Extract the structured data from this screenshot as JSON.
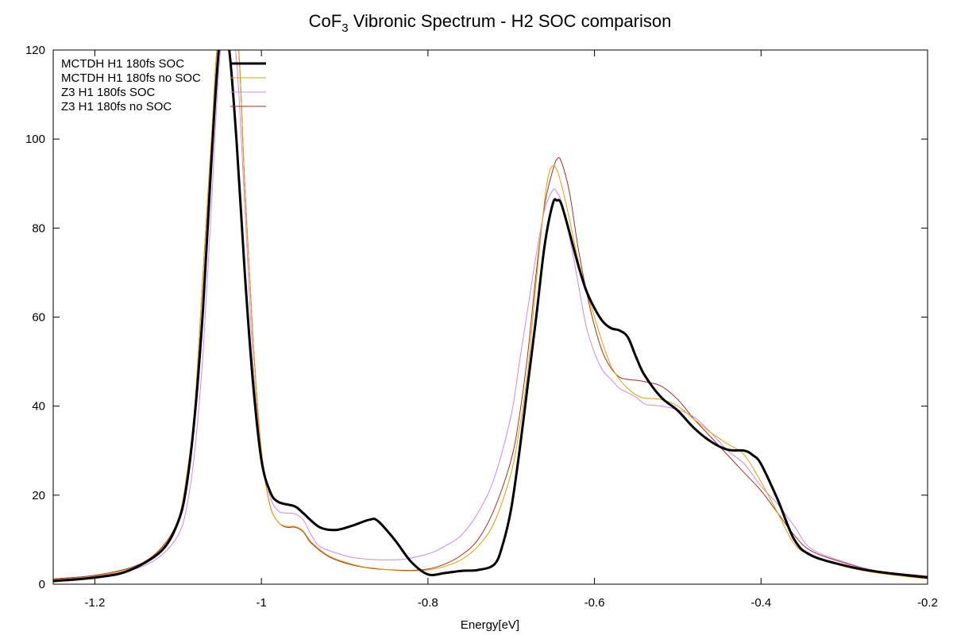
{
  "chart_data": {
    "type": "line",
    "title_main": "CoF",
    "title_sub": "3",
    "title_rest": " Vibronic Spectrum - H2 SOC comparison",
    "xlabel": "Energy[eV]",
    "ylabel": "",
    "xlim": [
      -1.25,
      -0.2
    ],
    "ylim": [
      0,
      120
    ],
    "xticks": [
      -1.2,
      -1,
      -0.8,
      -0.6,
      -0.4,
      -0.2
    ],
    "xtick_labels": [
      "-1.2",
      "-1",
      "-0.8",
      "-0.6",
      "-0.4",
      "-0.2"
    ],
    "yticks": [
      0,
      20,
      40,
      60,
      80,
      100,
      120
    ],
    "ytick_labels": [
      "0",
      "20",
      "40",
      "60",
      "80",
      "100",
      "120"
    ],
    "grid": false,
    "zero_line": true,
    "legend_position": "top-left",
    "series": [
      {
        "name": "MCTDH H1 180fs SOC",
        "color": "#000000",
        "width": 3,
        "points": [
          [
            -1.25,
            0.7
          ],
          [
            -1.2,
            1.5
          ],
          [
            -1.16,
            3.0
          ],
          [
            -1.12,
            7.5
          ],
          [
            -1.1,
            14
          ],
          [
            -1.09,
            22
          ],
          [
            -1.08,
            38
          ],
          [
            -1.07,
            62
          ],
          [
            -1.06,
            95
          ],
          [
            -1.05,
            122
          ],
          [
            -1.04,
            122
          ],
          [
            -1.03,
            100
          ],
          [
            -1.02,
            70
          ],
          [
            -1.01,
            45
          ],
          [
            -1.0,
            28
          ],
          [
            -0.99,
            21
          ],
          [
            -0.98,
            18.5
          ],
          [
            -0.96,
            17.5
          ],
          [
            -0.95,
            16.0
          ],
          [
            -0.93,
            12.8
          ],
          [
            -0.91,
            12.2
          ],
          [
            -0.89,
            13.2
          ],
          [
            -0.87,
            14.5
          ],
          [
            -0.86,
            14.2
          ],
          [
            -0.84,
            10
          ],
          [
            -0.82,
            5
          ],
          [
            -0.8,
            2.2
          ],
          [
            -0.78,
            2.5
          ],
          [
            -0.76,
            3.0
          ],
          [
            -0.74,
            3.2
          ],
          [
            -0.72,
            4.5
          ],
          [
            -0.71,
            9
          ],
          [
            -0.7,
            17
          ],
          [
            -0.69,
            30
          ],
          [
            -0.68,
            45
          ],
          [
            -0.67,
            60
          ],
          [
            -0.66,
            76
          ],
          [
            -0.65,
            85.5
          ],
          [
            -0.645,
            86.2
          ],
          [
            -0.64,
            85.5
          ],
          [
            -0.63,
            79
          ],
          [
            -0.62,
            72
          ],
          [
            -0.61,
            66
          ],
          [
            -0.6,
            62
          ],
          [
            -0.59,
            59
          ],
          [
            -0.58,
            57.5
          ],
          [
            -0.57,
            57
          ],
          [
            -0.56,
            55.5
          ],
          [
            -0.55,
            51
          ],
          [
            -0.54,
            47
          ],
          [
            -0.52,
            42
          ],
          [
            -0.5,
            39
          ],
          [
            -0.48,
            35
          ],
          [
            -0.46,
            32
          ],
          [
            -0.44,
            30.2
          ],
          [
            -0.42,
            30
          ],
          [
            -0.41,
            29
          ],
          [
            -0.4,
            27
          ],
          [
            -0.38,
            19
          ],
          [
            -0.36,
            10
          ],
          [
            -0.34,
            6.5
          ],
          [
            -0.3,
            4.2
          ],
          [
            -0.26,
            2.8
          ],
          [
            -0.2,
            1.5
          ]
        ]
      },
      {
        "name": "MCTDH H1 180fs no SOC",
        "color": "#e69f00",
        "width": 1,
        "points": [
          [
            -1.25,
            1.0
          ],
          [
            -1.2,
            1.8
          ],
          [
            -1.15,
            4.0
          ],
          [
            -1.12,
            8.0
          ],
          [
            -1.1,
            14
          ],
          [
            -1.09,
            24
          ],
          [
            -1.08,
            40
          ],
          [
            -1.07,
            70
          ],
          [
            -1.06,
            100
          ],
          [
            -1.05,
            125
          ],
          [
            -1.03,
            125
          ],
          [
            -1.02,
            90
          ],
          [
            -1.01,
            55
          ],
          [
            -1.0,
            30
          ],
          [
            -0.99,
            18
          ],
          [
            -0.98,
            14
          ],
          [
            -0.97,
            13
          ],
          [
            -0.96,
            13
          ],
          [
            -0.95,
            12
          ],
          [
            -0.94,
            9.5
          ],
          [
            -0.92,
            6.5
          ],
          [
            -0.9,
            5.0
          ],
          [
            -0.88,
            4.0
          ],
          [
            -0.86,
            3.5
          ],
          [
            -0.84,
            3.1
          ],
          [
            -0.82,
            3.0
          ],
          [
            -0.8,
            3.2
          ],
          [
            -0.78,
            4.0
          ],
          [
            -0.76,
            5.5
          ],
          [
            -0.74,
            8.5
          ],
          [
            -0.72,
            14
          ],
          [
            -0.7,
            25
          ],
          [
            -0.69,
            35
          ],
          [
            -0.68,
            48
          ],
          [
            -0.67,
            68
          ],
          [
            -0.66,
            86
          ],
          [
            -0.655,
            92
          ],
          [
            -0.65,
            94
          ],
          [
            -0.645,
            93
          ],
          [
            -0.64,
            90
          ],
          [
            -0.63,
            82
          ],
          [
            -0.62,
            73
          ],
          [
            -0.61,
            66
          ],
          [
            -0.6,
            60
          ],
          [
            -0.59,
            54
          ],
          [
            -0.58,
            49
          ],
          [
            -0.57,
            46
          ],
          [
            -0.56,
            44
          ],
          [
            -0.55,
            42.5
          ],
          [
            -0.54,
            41.8
          ],
          [
            -0.52,
            41.5
          ],
          [
            -0.5,
            40
          ],
          [
            -0.48,
            37
          ],
          [
            -0.46,
            34
          ],
          [
            -0.44,
            31.5
          ],
          [
            -0.42,
            29
          ],
          [
            -0.4,
            23
          ],
          [
            -0.38,
            16
          ],
          [
            -0.36,
            9
          ],
          [
            -0.34,
            6.5
          ],
          [
            -0.3,
            4.0
          ],
          [
            -0.26,
            2.5
          ],
          [
            -0.2,
            1.2
          ]
        ]
      },
      {
        "name": "Z3 H1 180fs SOC",
        "color": "#cc88ee",
        "width": 1,
        "points": [
          [
            -1.25,
            1.0
          ],
          [
            -1.2,
            1.8
          ],
          [
            -1.15,
            3.5
          ],
          [
            -1.12,
            6.5
          ],
          [
            -1.1,
            11
          ],
          [
            -1.09,
            17
          ],
          [
            -1.08,
            30
          ],
          [
            -1.07,
            52
          ],
          [
            -1.06,
            85
          ],
          [
            -1.05,
            118
          ],
          [
            -1.04,
            125
          ],
          [
            -1.03,
            118
          ],
          [
            -1.02,
            85
          ],
          [
            -1.01,
            50
          ],
          [
            -1.0,
            30
          ],
          [
            -0.99,
            20
          ],
          [
            -0.98,
            16.5
          ],
          [
            -0.97,
            16
          ],
          [
            -0.96,
            15.8
          ],
          [
            -0.95,
            14.5
          ],
          [
            -0.94,
            11
          ],
          [
            -0.93,
            8.5
          ],
          [
            -0.91,
            7.0
          ],
          [
            -0.89,
            6.0
          ],
          [
            -0.86,
            5.5
          ],
          [
            -0.83,
            5.6
          ],
          [
            -0.8,
            6.8
          ],
          [
            -0.78,
            8.5
          ],
          [
            -0.76,
            11
          ],
          [
            -0.74,
            16
          ],
          [
            -0.72,
            24
          ],
          [
            -0.7,
            38
          ],
          [
            -0.69,
            50
          ],
          [
            -0.68,
            62
          ],
          [
            -0.67,
            74
          ],
          [
            -0.66,
            84
          ],
          [
            -0.65,
            88.5
          ],
          [
            -0.645,
            88
          ],
          [
            -0.64,
            86
          ],
          [
            -0.63,
            78
          ],
          [
            -0.62,
            68
          ],
          [
            -0.61,
            58
          ],
          [
            -0.6,
            52
          ],
          [
            -0.59,
            48
          ],
          [
            -0.58,
            46
          ],
          [
            -0.57,
            44
          ],
          [
            -0.56,
            43
          ],
          [
            -0.55,
            42
          ],
          [
            -0.54,
            40.5
          ],
          [
            -0.53,
            40.2
          ],
          [
            -0.52,
            40
          ],
          [
            -0.5,
            39.2
          ],
          [
            -0.48,
            37.5
          ],
          [
            -0.46,
            34
          ],
          [
            -0.44,
            30
          ],
          [
            -0.42,
            27
          ],
          [
            -0.4,
            22
          ],
          [
            -0.38,
            18
          ],
          [
            -0.36,
            13
          ],
          [
            -0.34,
            8
          ],
          [
            -0.3,
            5.0
          ],
          [
            -0.26,
            3.0
          ],
          [
            -0.2,
            1.5
          ]
        ]
      },
      {
        "name": "Z3 H1 180fs no SOC",
        "color": "#a0302a",
        "width": 1,
        "points": [
          [
            -1.25,
            1.2
          ],
          [
            -1.2,
            2.0
          ],
          [
            -1.15,
            4.2
          ],
          [
            -1.12,
            8.2
          ],
          [
            -1.1,
            14.5
          ],
          [
            -1.09,
            24
          ],
          [
            -1.08,
            40
          ],
          [
            -1.07,
            70
          ],
          [
            -1.06,
            100
          ],
          [
            -1.05,
            125
          ],
          [
            -1.03,
            125
          ],
          [
            -1.02,
            90
          ],
          [
            -1.01,
            55
          ],
          [
            -1.0,
            30
          ],
          [
            -0.99,
            18
          ],
          [
            -0.98,
            14
          ],
          [
            -0.97,
            12.8
          ],
          [
            -0.96,
            12.8
          ],
          [
            -0.95,
            11.8
          ],
          [
            -0.94,
            9.2
          ],
          [
            -0.92,
            6.3
          ],
          [
            -0.9,
            4.8
          ],
          [
            -0.88,
            3.9
          ],
          [
            -0.86,
            3.4
          ],
          [
            -0.84,
            3.2
          ],
          [
            -0.82,
            3.1
          ],
          [
            -0.8,
            3.4
          ],
          [
            -0.78,
            4.5
          ],
          [
            -0.76,
            6.5
          ],
          [
            -0.74,
            10
          ],
          [
            -0.72,
            17
          ],
          [
            -0.7,
            28
          ],
          [
            -0.69,
            38
          ],
          [
            -0.68,
            52
          ],
          [
            -0.67,
            70
          ],
          [
            -0.66,
            85
          ],
          [
            -0.65,
            93
          ],
          [
            -0.645,
            95.5
          ],
          [
            -0.64,
            95
          ],
          [
            -0.63,
            88
          ],
          [
            -0.62,
            76
          ],
          [
            -0.61,
            66
          ],
          [
            -0.6,
            58
          ],
          [
            -0.59,
            52
          ],
          [
            -0.58,
            48.5
          ],
          [
            -0.57,
            46.5
          ],
          [
            -0.56,
            46
          ],
          [
            -0.55,
            45.8
          ],
          [
            -0.54,
            45.5
          ],
          [
            -0.52,
            44.5
          ],
          [
            -0.5,
            41.5
          ],
          [
            -0.48,
            37
          ],
          [
            -0.46,
            33
          ],
          [
            -0.44,
            29
          ],
          [
            -0.42,
            25
          ],
          [
            -0.4,
            21
          ],
          [
            -0.38,
            16
          ],
          [
            -0.36,
            11
          ],
          [
            -0.34,
            7.5
          ],
          [
            -0.3,
            4.8
          ],
          [
            -0.26,
            3.0
          ],
          [
            -0.2,
            1.8
          ]
        ]
      }
    ]
  }
}
